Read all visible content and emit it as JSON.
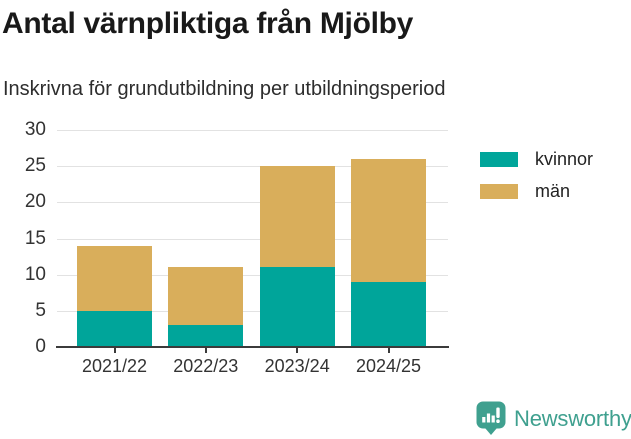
{
  "header": {
    "title": "Antal värnpliktiga från Mjölby",
    "subtitle": "Inskrivna för grundutbildning per utbildningsperiod"
  },
  "footer": {
    "brand": "Newsworthy",
    "brand_color": "#3fa08f",
    "logo_icon": "bar-chart-speech-bubble-icon"
  },
  "chart_data": {
    "type": "bar",
    "stacked": true,
    "title": "Antal värnpliktiga från Mjölby",
    "subtitle": "Inskrivna för grundutbildning per utbildningsperiod",
    "categories": [
      "2021/22",
      "2022/23",
      "2023/24",
      "2024/25"
    ],
    "series": [
      {
        "name": "kvinnor",
        "color": "#00a59a",
        "values": [
          5,
          3,
          11,
          9
        ]
      },
      {
        "name": "män",
        "color": "#d9ae5b",
        "values": [
          9,
          8,
          14,
          17
        ]
      }
    ],
    "totals": [
      14,
      11,
      25,
      26
    ],
    "xlabel": "",
    "ylabel": "",
    "ylim": [
      0,
      30
    ],
    "yticks": [
      0,
      5,
      10,
      15,
      20,
      25,
      30
    ],
    "grid": true,
    "legend_position": "right"
  }
}
